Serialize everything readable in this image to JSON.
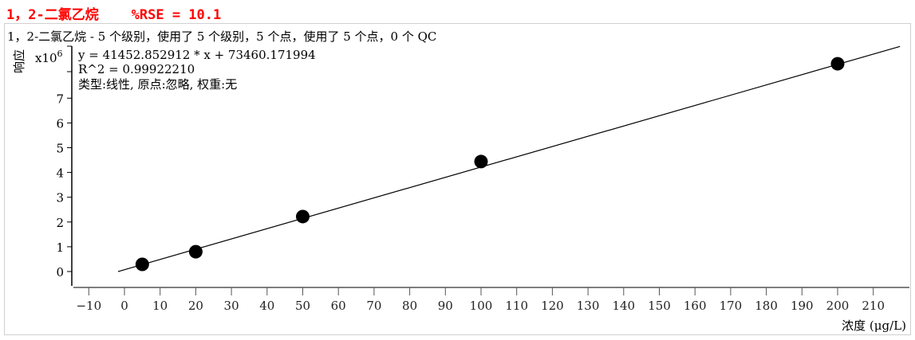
{
  "header": {
    "title": "1，2-二氯乙烷    %RSE = 10.1"
  },
  "chart_data": {
    "type": "scatter",
    "title": "1，2-二氯乙烷 - 5 个级别，使用了 5 个级别，5 个点，使用了 5 个点，0 个 QC",
    "equation": "y = 41452.852912 * x  + 73460.171994",
    "r2": "R^2 = 0.99922210",
    "fit_info": "类型:线性, 原点:忽略, 权重:无",
    "xlabel": "浓度 (μg/L)",
    "ylabel": "响应",
    "y_multiplier": "x10",
    "y_multiplier_exp": "6",
    "xlim": [
      -14,
      220
    ],
    "ylim": [
      -0.5,
      9.2
    ],
    "xticks": [
      -10,
      0,
      10,
      20,
      30,
      40,
      50,
      60,
      70,
      80,
      90,
      100,
      110,
      120,
      130,
      140,
      150,
      160,
      170,
      180,
      190,
      200,
      210
    ],
    "yticks": [
      0,
      1,
      2,
      3,
      4,
      5,
      6,
      7
    ],
    "points": [
      {
        "x": 5,
        "y": 0.29
      },
      {
        "x": 20,
        "y": 0.8
      },
      {
        "x": 50,
        "y": 2.22
      },
      {
        "x": 100,
        "y": 4.44
      },
      {
        "x": 200,
        "y": 8.39
      }
    ],
    "fit": {
      "slope": 41452.852912,
      "intercept": 73460.171994,
      "x_range": [
        -1.8,
        217.5
      ]
    },
    "grid": false,
    "colors": {
      "title": "#ff0000",
      "points": "#000000",
      "line": "#000000"
    }
  }
}
